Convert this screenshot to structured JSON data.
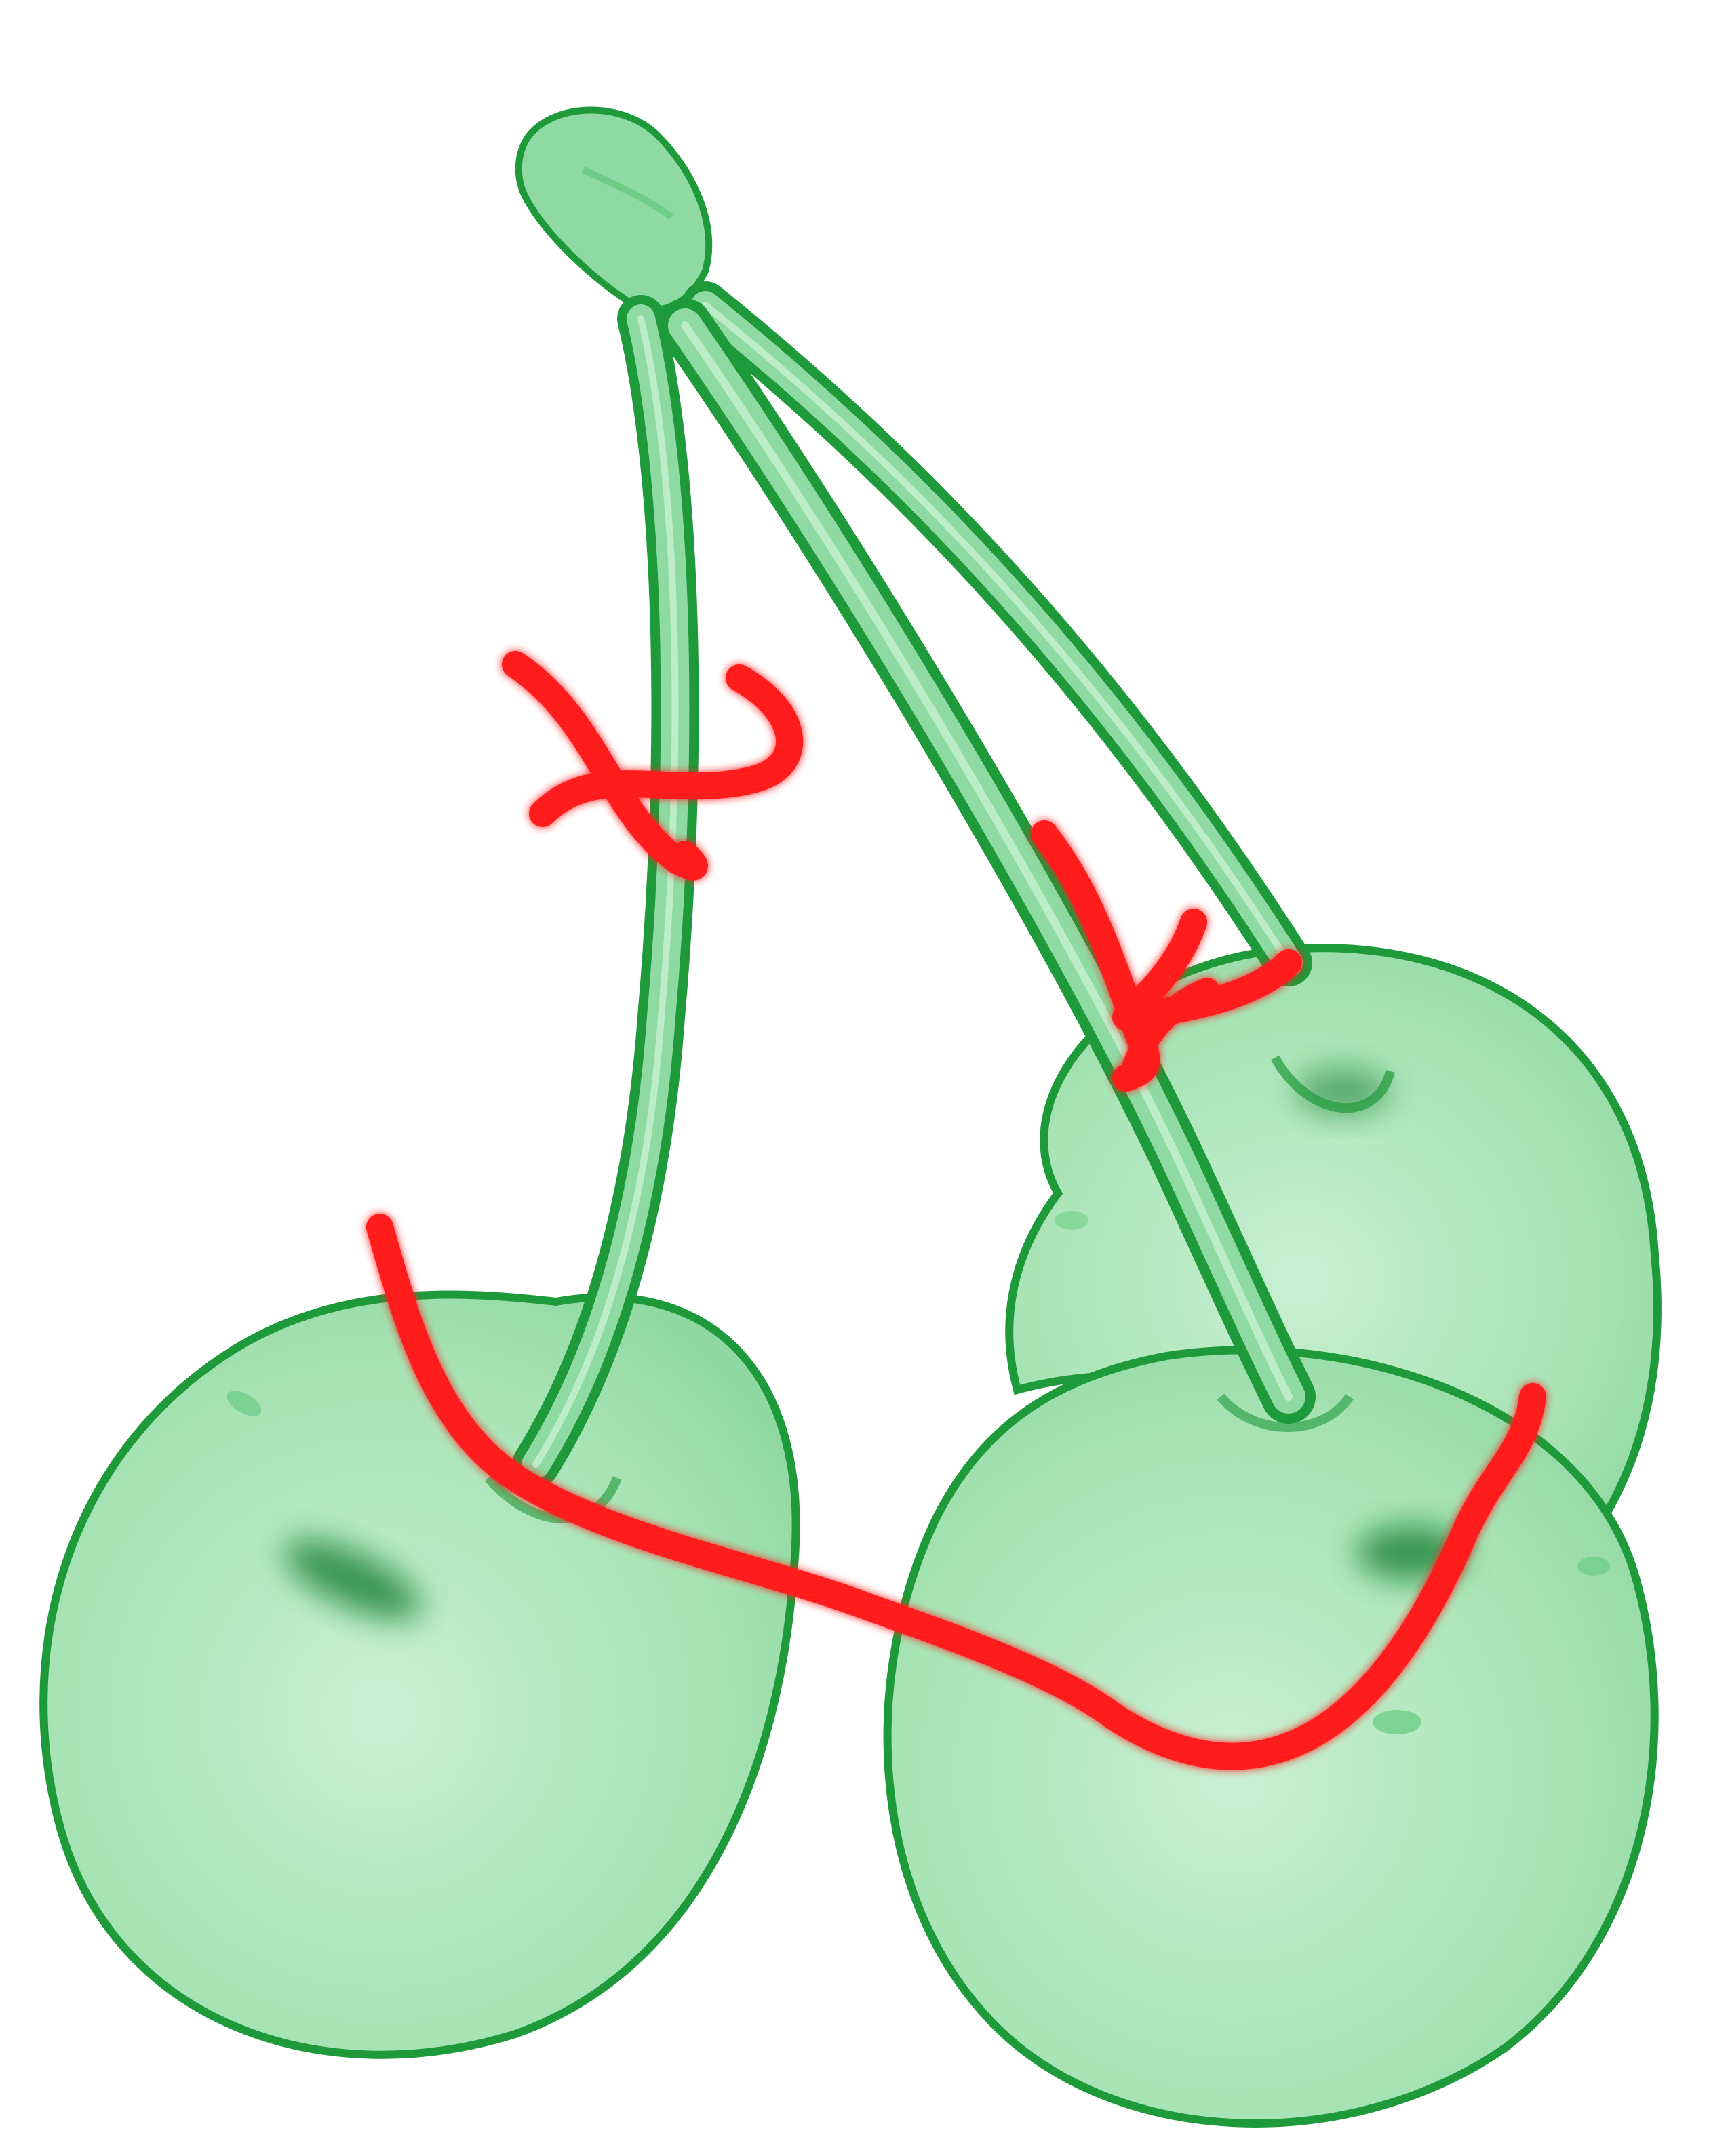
{
  "scene": {
    "subject": "three-cherries-on-stems",
    "colors": {
      "background": "#ffffff",
      "cherry_fill_light": "#c9efd2",
      "cherry_fill_mid": "#9fe0ae",
      "cherry_outline": "#1f9a3a",
      "cherry_shadow": "#0b7a2a",
      "stem_fill": "#6fcf86",
      "stem_outline": "#23a043",
      "annotation": "#ff1a1a"
    }
  }
}
